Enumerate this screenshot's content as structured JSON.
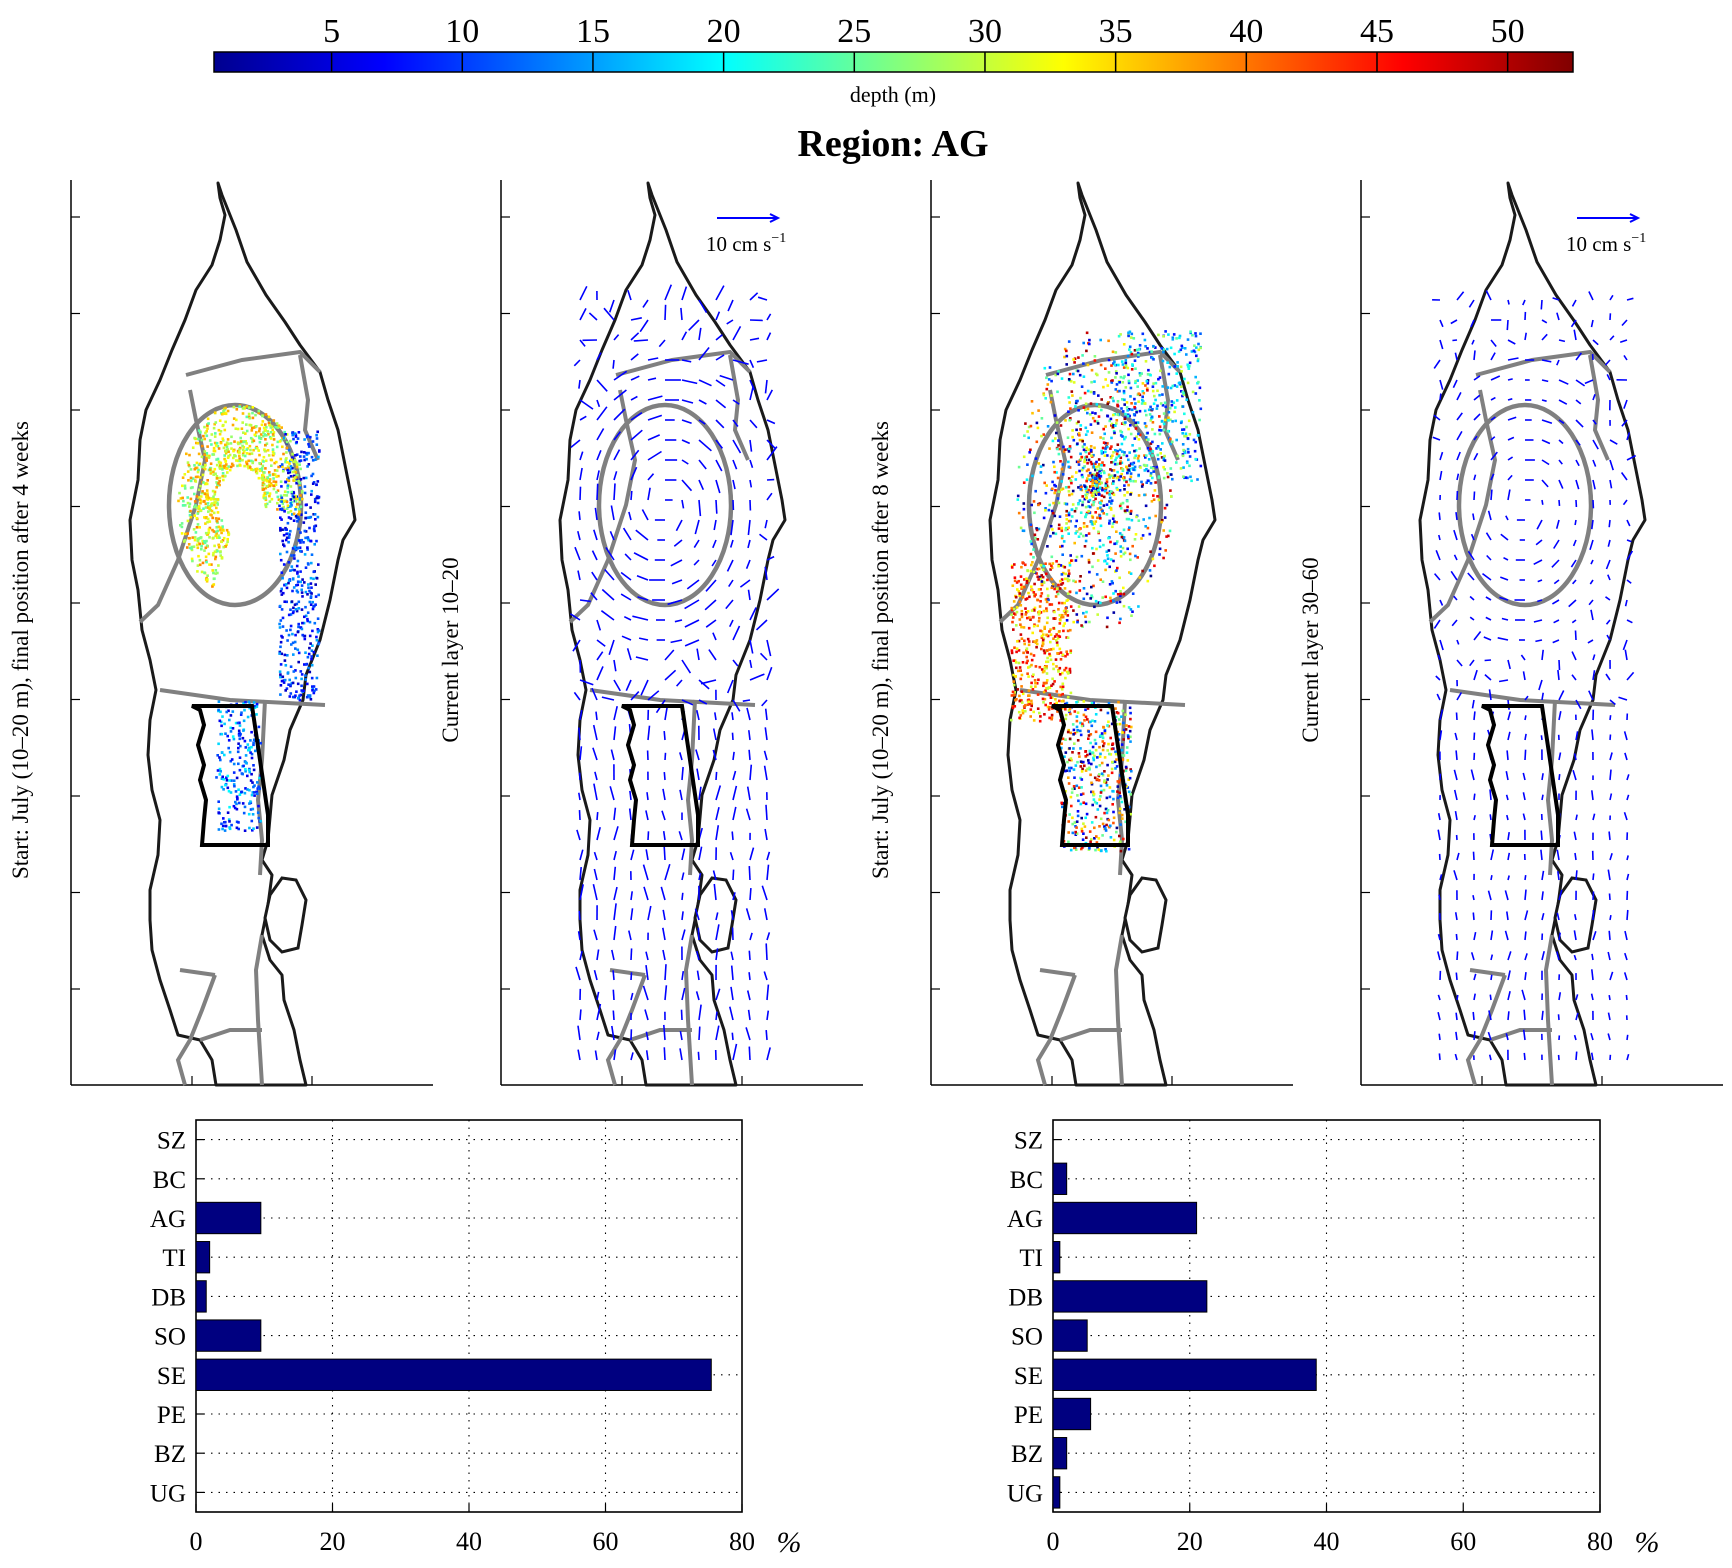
{
  "colorbar": {
    "ticks": [
      5,
      10,
      15,
      20,
      25,
      30,
      35,
      40,
      45,
      50
    ],
    "min": 0.5,
    "max": 52.5,
    "label": "depth (m)",
    "colors": [
      "#00008f",
      "#0000ff",
      "#0080ff",
      "#00ffff",
      "#80ff80",
      "#ffff00",
      "#ff8000",
      "#ff0000",
      "#800000"
    ]
  },
  "title": "Region: AG",
  "map_panels": [
    {
      "ylabel": "Start: July (10–20 m), final position after 4 weeks",
      "kind": "particles",
      "stage": 1
    },
    {
      "ylabel": "Current layer 10–20",
      "kind": "currents",
      "scale_label": "10 cm s",
      "scale_sup": "−1"
    },
    {
      "ylabel": "Start: July (10–20 m), final position after 8 weeks",
      "kind": "particles",
      "stage": 2
    },
    {
      "ylabel": "Current layer 30–60",
      "kind": "currents",
      "scale_label": "10 cm s",
      "scale_sup": "−1"
    }
  ],
  "chart_data": [
    {
      "type": "bar",
      "orientation": "horizontal",
      "categories": [
        "SZ",
        "BC",
        "AG",
        "TI",
        "DB",
        "SO",
        "SE",
        "PE",
        "BZ",
        "UG"
      ],
      "values": [
        0,
        0,
        9.5,
        2,
        1.5,
        9.5,
        75.5,
        0,
        0,
        0
      ],
      "xlim": [
        0,
        80
      ],
      "xticks": [
        0,
        20,
        40,
        60,
        80
      ],
      "xunit": "%",
      "grid": true,
      "bar_color": "#000080"
    },
    {
      "type": "bar",
      "orientation": "horizontal",
      "categories": [
        "SZ",
        "BC",
        "AG",
        "TI",
        "DB",
        "SO",
        "SE",
        "PE",
        "BZ",
        "UG"
      ],
      "values": [
        0,
        2,
        21,
        1,
        22.5,
        5,
        38.5,
        5.5,
        2,
        1
      ],
      "xlim": [
        0,
        80
      ],
      "xticks": [
        0,
        20,
        40,
        60,
        80
      ],
      "xunit": "%",
      "grid": true,
      "bar_color": "#000080"
    }
  ]
}
